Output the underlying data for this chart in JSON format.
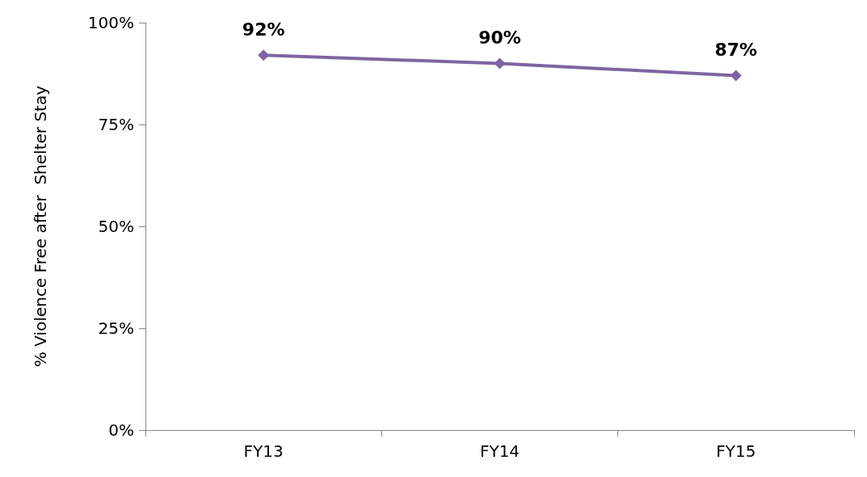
{
  "chart_data": {
    "type": "line",
    "ylabel": "% Violence Free after  Shelter Stay",
    "categories": [
      "FY13",
      "FY14",
      "FY15"
    ],
    "series": [
      {
        "color": "#8064a2",
        "values": [
          92,
          90,
          87
        ],
        "value_labels": [
          "92%",
          "90%",
          "87%"
        ]
      }
    ],
    "ylim": [
      0,
      100
    ],
    "yticks": [
      {
        "value": 0,
        "label": "0%"
      },
      {
        "value": 25,
        "label": "25%"
      },
      {
        "value": 50,
        "label": "50%"
      },
      {
        "value": 75,
        "label": "75%"
      },
      {
        "value": 100,
        "label": "100%"
      }
    ],
    "grid": false,
    "marker": "diamond",
    "line_style": "solid"
  }
}
